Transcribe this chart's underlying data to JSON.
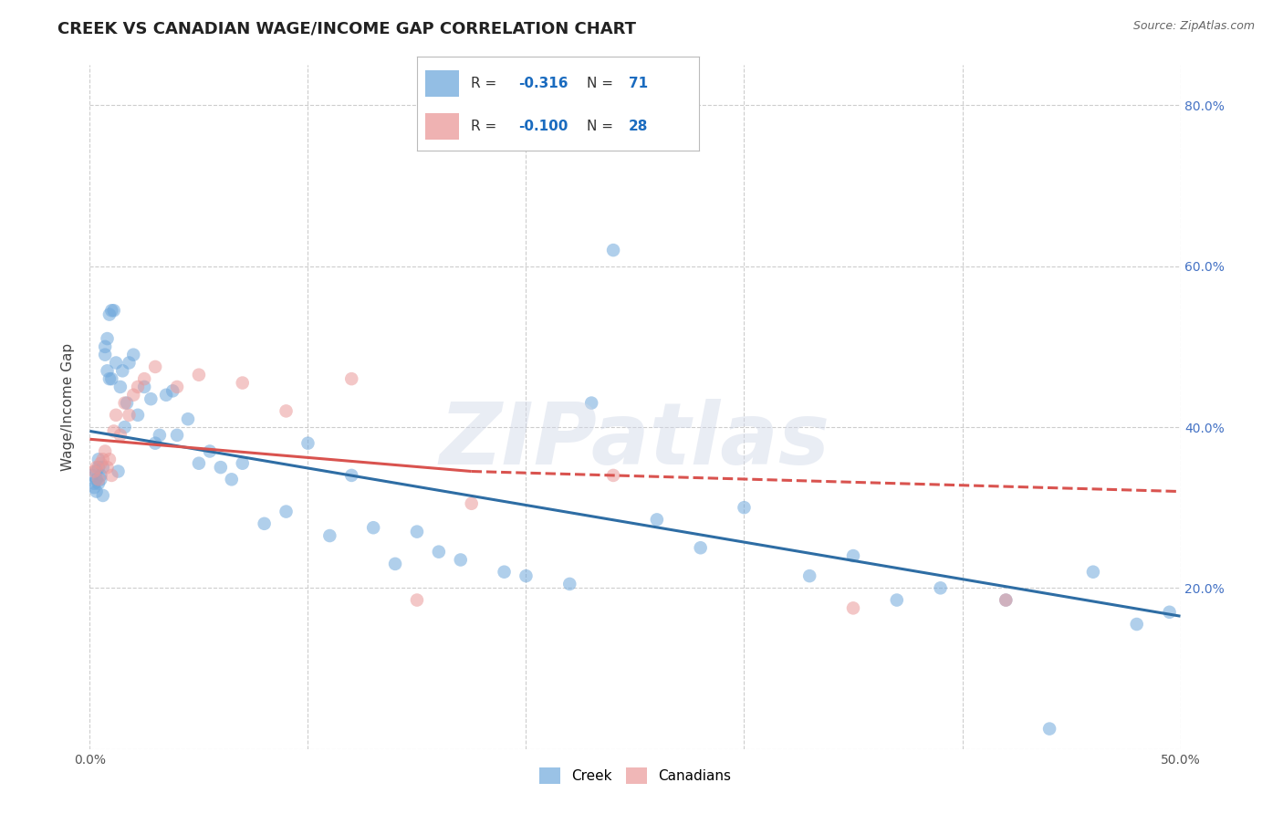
{
  "title": "CREEK VS CANADIAN WAGE/INCOME GAP CORRELATION CHART",
  "source": "Source: ZipAtlas.com",
  "ylabel": "Wage/Income Gap",
  "xlim": [
    0.0,
    0.5
  ],
  "ylim": [
    0.0,
    0.85
  ],
  "creek_color": "#6fa8dc",
  "canadian_color": "#ea9999",
  "creek_line_color": "#2e6da4",
  "canadian_line_color": "#d9534f",
  "background_color": "#ffffff",
  "grid_color": "#c8c8c8",
  "legend_R_color": "#1a6bbf",
  "legend_N_color": "#1a6bbf",
  "creek_R": -0.316,
  "creek_N": 71,
  "canadian_R": -0.1,
  "canadian_N": 28,
  "creek_x": [
    0.001,
    0.002,
    0.002,
    0.003,
    0.003,
    0.003,
    0.004,
    0.004,
    0.004,
    0.005,
    0.005,
    0.006,
    0.006,
    0.007,
    0.007,
    0.008,
    0.008,
    0.009,
    0.009,
    0.01,
    0.01,
    0.011,
    0.012,
    0.013,
    0.014,
    0.015,
    0.016,
    0.017,
    0.018,
    0.02,
    0.022,
    0.025,
    0.028,
    0.03,
    0.032,
    0.035,
    0.038,
    0.04,
    0.045,
    0.05,
    0.055,
    0.06,
    0.065,
    0.07,
    0.08,
    0.09,
    0.1,
    0.11,
    0.12,
    0.13,
    0.14,
    0.15,
    0.16,
    0.17,
    0.19,
    0.2,
    0.22,
    0.23,
    0.24,
    0.26,
    0.28,
    0.3,
    0.33,
    0.35,
    0.37,
    0.39,
    0.42,
    0.44,
    0.46,
    0.48,
    0.495
  ],
  "creek_y": [
    0.34,
    0.33,
    0.325,
    0.345,
    0.335,
    0.32,
    0.35,
    0.36,
    0.33,
    0.34,
    0.335,
    0.35,
    0.315,
    0.49,
    0.5,
    0.51,
    0.47,
    0.46,
    0.54,
    0.545,
    0.46,
    0.545,
    0.48,
    0.345,
    0.45,
    0.47,
    0.4,
    0.43,
    0.48,
    0.49,
    0.415,
    0.45,
    0.435,
    0.38,
    0.39,
    0.44,
    0.445,
    0.39,
    0.41,
    0.355,
    0.37,
    0.35,
    0.335,
    0.355,
    0.28,
    0.295,
    0.38,
    0.265,
    0.34,
    0.275,
    0.23,
    0.27,
    0.245,
    0.235,
    0.22,
    0.215,
    0.205,
    0.43,
    0.62,
    0.285,
    0.25,
    0.3,
    0.215,
    0.24,
    0.185,
    0.2,
    0.185,
    0.025,
    0.22,
    0.155,
    0.17
  ],
  "canadian_x": [
    0.002,
    0.003,
    0.004,
    0.005,
    0.006,
    0.007,
    0.008,
    0.009,
    0.01,
    0.011,
    0.012,
    0.014,
    0.016,
    0.018,
    0.02,
    0.022,
    0.025,
    0.03,
    0.04,
    0.05,
    0.07,
    0.09,
    0.12,
    0.15,
    0.175,
    0.24,
    0.35,
    0.42
  ],
  "canadian_y": [
    0.345,
    0.35,
    0.335,
    0.355,
    0.36,
    0.37,
    0.35,
    0.36,
    0.34,
    0.395,
    0.415,
    0.39,
    0.43,
    0.415,
    0.44,
    0.45,
    0.46,
    0.475,
    0.45,
    0.465,
    0.455,
    0.42,
    0.46,
    0.185,
    0.305,
    0.34,
    0.175,
    0.185
  ],
  "watermark": "ZIPatlas",
  "marker_size": 110,
  "marker_alpha": 0.55,
  "line_width": 2.2,
  "creek_line_x0": 0.0,
  "creek_line_y0": 0.395,
  "creek_line_x1": 0.5,
  "creek_line_y1": 0.165,
  "canadian_line_x0": 0.0,
  "canadian_line_y0": 0.385,
  "canadian_line_x1": 0.175,
  "canadian_line_y1": 0.345,
  "canadian_line_dash_x0": 0.175,
  "canadian_line_dash_y0": 0.345,
  "canadian_line_dash_x1": 0.5,
  "canadian_line_dash_y1": 0.32
}
